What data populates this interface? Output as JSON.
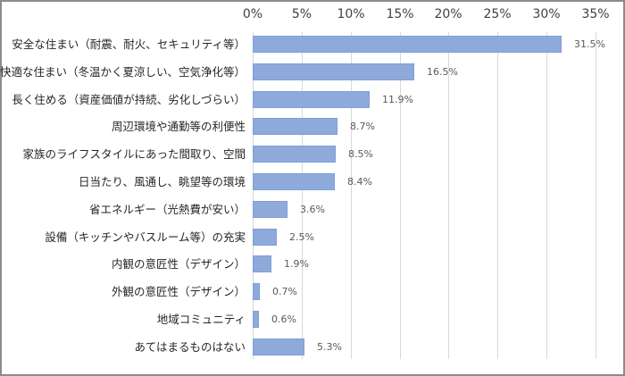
{
  "chart_data": {
    "type": "bar",
    "orientation": "horizontal",
    "title": "",
    "xlabel": "",
    "ylabel": "",
    "xlim": [
      0,
      35
    ],
    "x_ticks": [
      "0%",
      "5%",
      "10%",
      "15%",
      "20%",
      "25%",
      "30%",
      "35%"
    ],
    "grid": true,
    "legend": null,
    "bar_color": "#8eaadb",
    "categories": [
      "安全な住まい（耐震、耐火、セキュリティ等）",
      "快適な住まい（冬温かく夏涼しい、空気浄化等）",
      "長く住める（資産価値が持続、劣化しづらい）",
      "周辺環境や通勤等の利便性",
      "家族のライフスタイルにあった間取り、空間",
      "日当たり、風通し、眺望等の環境",
      "省エネルギー（光熱費が安い）",
      "設備（キッチンやバスルーム等）の充実",
      "内観の意匠性（デザイン）",
      "外観の意匠性（デザイン）",
      "地域コミュニティ",
      "あてはまるものはない"
    ],
    "values": [
      31.5,
      16.5,
      11.9,
      8.7,
      8.5,
      8.4,
      3.6,
      2.5,
      1.9,
      0.7,
      0.6,
      5.3
    ],
    "value_labels": [
      "31.5%",
      "16.5%",
      "11.9%",
      "8.7%",
      "8.5%",
      "8.4%",
      "3.6%",
      "2.5%",
      "1.9%",
      "0.7%",
      "0.6%",
      "5.3%"
    ]
  }
}
